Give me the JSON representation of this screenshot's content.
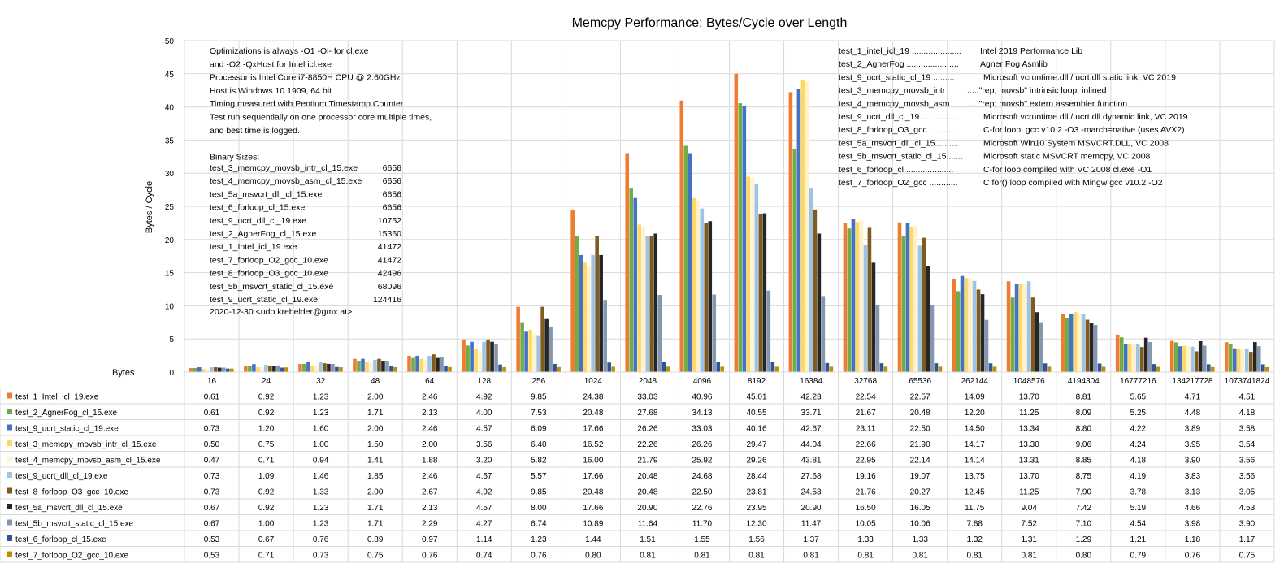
{
  "colors": {
    "test_1_Intel_icl_19.exe": "#ED7D31",
    "test_2_AgnerFog_cl_15.exe": "#70AD47",
    "test_9_ucrt_static_cl_19.exe": "#4472C4",
    "test_3_memcpy_movsb_intr_cl_15.exe": "#FFD966",
    "test_4_memcpy_movsb_asm_cl_15.exe": "#FFF2CC",
    "test_9_ucrt_dll_cl_19.exe": "#9DC3E6",
    "test_8_forloop_O3_gcc_10.exe": "#7F5B1E",
    "test_5a_msvcrt_dll_cl_15.exe": "#262626",
    "test_5b_msvcrt_static_cl_15.exe": "#8497B0",
    "test_6_forloop_cl_15.exe": "#2F5597",
    "test_7_forloop_O2_gcc_10.exe": "#BF8F00"
  },
  "chart_data": {
    "type": "bar",
    "title": "Memcpy Performance: Bytes/Cycle over Length",
    "ylabel": "Bytes / Cycle",
    "xlabel": "Bytes",
    "ylim": [
      0,
      50
    ],
    "yticks": [
      "0",
      "5",
      "10",
      "15",
      "20",
      "25",
      "30",
      "35",
      "40",
      "45",
      "50"
    ],
    "grid": true,
    "legend_placement": "data table below chart",
    "categories": [
      "16",
      "24",
      "32",
      "48",
      "64",
      "128",
      "256",
      "1024",
      "2048",
      "4096",
      "8192",
      "16384",
      "32768",
      "65536",
      "262144",
      "1048576",
      "4194304",
      "16777216",
      "134217728",
      "1073741824"
    ],
    "series": [
      {
        "name": "test_1_Intel_icl_19.exe",
        "values": [
          0.61,
          0.92,
          1.23,
          2.0,
          2.46,
          4.92,
          9.85,
          24.38,
          33.03,
          40.96,
          45.01,
          42.23,
          22.54,
          22.57,
          14.09,
          13.7,
          8.81,
          5.65,
          4.71,
          4.51
        ]
      },
      {
        "name": "test_2_AgnerFog_cl_15.exe",
        "values": [
          0.61,
          0.92,
          1.23,
          1.71,
          2.13,
          4.0,
          7.53,
          20.48,
          27.68,
          34.13,
          40.55,
          33.71,
          21.67,
          20.48,
          12.2,
          11.25,
          8.09,
          5.25,
          4.48,
          4.18
        ]
      },
      {
        "name": "test_9_ucrt_static_cl_19.exe",
        "values": [
          0.73,
          1.2,
          1.6,
          2.0,
          2.46,
          4.57,
          6.09,
          17.66,
          26.26,
          33.03,
          40.16,
          42.67,
          23.11,
          22.5,
          14.5,
          13.34,
          8.8,
          4.22,
          3.89,
          3.58
        ]
      },
      {
        "name": "test_3_memcpy_movsb_intr_cl_15.exe",
        "values": [
          0.5,
          0.75,
          1.0,
          1.5,
          2.0,
          3.56,
          6.4,
          16.52,
          22.26,
          26.26,
          29.47,
          44.04,
          22.66,
          21.9,
          14.17,
          13.3,
          9.06,
          4.24,
          3.95,
          3.54
        ]
      },
      {
        "name": "test_4_memcpy_movsb_asm_cl_15.exe",
        "values": [
          0.47,
          0.71,
          0.94,
          1.41,
          1.88,
          3.2,
          5.82,
          16.0,
          21.79,
          25.92,
          29.26,
          43.81,
          22.95,
          22.14,
          14.14,
          13.31,
          8.85,
          4.18,
          3.9,
          3.56
        ]
      },
      {
        "name": "test_9_ucrt_dll_cl_19.exe",
        "values": [
          0.73,
          1.09,
          1.46,
          1.85,
          2.46,
          4.57,
          5.57,
          17.66,
          20.48,
          24.68,
          28.44,
          27.68,
          19.16,
          19.07,
          13.75,
          13.7,
          8.75,
          4.19,
          3.83,
          3.56
        ]
      },
      {
        "name": "test_8_forloop_O3_gcc_10.exe",
        "values": [
          0.73,
          0.92,
          1.33,
          2.0,
          2.67,
          4.92,
          9.85,
          20.48,
          20.48,
          22.5,
          23.81,
          24.53,
          21.76,
          20.27,
          12.45,
          11.25,
          7.9,
          3.78,
          3.13,
          3.05
        ]
      },
      {
        "name": "test_5a_msvcrt_dll_cl_15.exe",
        "values": [
          0.67,
          0.92,
          1.23,
          1.71,
          2.13,
          4.57,
          8.0,
          17.66,
          20.9,
          22.76,
          23.95,
          20.9,
          16.5,
          16.05,
          11.75,
          9.04,
          7.42,
          5.19,
          4.66,
          4.53
        ]
      },
      {
        "name": "test_5b_msvcrt_static_cl_15.exe",
        "values": [
          0.67,
          1.0,
          1.23,
          1.71,
          2.29,
          4.27,
          6.74,
          10.89,
          11.64,
          11.7,
          12.3,
          11.47,
          10.05,
          10.06,
          7.88,
          7.52,
          7.1,
          4.54,
          3.98,
          3.9
        ]
      },
      {
        "name": "test_6_forloop_cl_15.exe",
        "values": [
          0.53,
          0.67,
          0.76,
          0.89,
          0.97,
          1.14,
          1.23,
          1.44,
          1.51,
          1.55,
          1.56,
          1.37,
          1.33,
          1.33,
          1.32,
          1.31,
          1.29,
          1.21,
          1.18,
          1.17
        ]
      },
      {
        "name": "test_7_forloop_O2_gcc_10.exe",
        "values": [
          0.53,
          0.71,
          0.73,
          0.75,
          0.76,
          0.74,
          0.76,
          0.8,
          0.81,
          0.81,
          0.81,
          0.81,
          0.81,
          0.81,
          0.81,
          0.81,
          0.8,
          0.79,
          0.76,
          0.75
        ]
      }
    ],
    "notes": [
      "Optimizations is always -O1 -Oi- for cl.exe",
      " and -O2 -QxHost for Intel icl.exe",
      "Processor is Intel Core i7-8850H CPU @ 2.60GHz",
      "Host is Windows 10 1909, 64 bit",
      "Timing measured with Pentium Timestamp Counter",
      "Test run sequentially on one processor core multiple times,",
      "and best time is logged.",
      "",
      "Binary Sizes:"
    ],
    "binary_sizes": [
      {
        "name": "test_3_memcpy_movsb_intr_cl_15.exe",
        "size": "6656"
      },
      {
        "name": "test_4_memcpy_movsb_asm_cl_15.exe",
        "size": "6656"
      },
      {
        "name": "test_5a_msvcrt_dll_cl_15.exe",
        "size": "6656"
      },
      {
        "name": "test_6_forloop_cl_15.exe",
        "size": "6656"
      },
      {
        "name": "test_9_ucrt_dll_cl_19.exe",
        "size": "10752"
      },
      {
        "name": "test_2_AgnerFog_cl_15.exe",
        "size": "15360"
      },
      {
        "name": "test_1_Intel_icl_19.exe",
        "size": "41472"
      },
      {
        "name": "test_7_forloop_O2_gcc_10.exe",
        "size": "41472"
      },
      {
        "name": "test_8_forloop_O3_gcc_10.exe",
        "size": "42496"
      },
      {
        "name": "test_5b_msvcrt_static_cl_15.exe",
        "size": "68096"
      },
      {
        "name": "test_9_ucrt_static_cl_19.exe",
        "size": "124416"
      }
    ],
    "date_note": "2020-12-30  <udo.krebelder@gmx.at>",
    "descriptions": [
      {
        "key": "test_1_intel_icl_19 .....................",
        "desc": "Intel  2019 Performance Lib"
      },
      {
        "key": "test_2_AgnerFog  ......................",
        "desc": "Agner Fog Asmlib"
      },
      {
        "key": "test_9_ucrt_static_cl_19 .........",
        "desc": "Microsoft vcruntime.dll / ucrt.dll static link, VC 2019"
      },
      {
        "key": "test_3_memcpy_movsb_intr",
        "desc": ".....\"rep;  movsb\" intrinsic loop, inlined"
      },
      {
        "key": "test_4_memcpy_movsb_asm",
        "desc": ".....\"rep;  movsb\" extern assembler function"
      },
      {
        "key": "test_9_ucrt_dll_cl_19.................",
        "desc": "Microsoft vcruntime.dll / ucrt.dll dynamic link, VC 2019"
      },
      {
        "key": "test_8_forloop_O3_gcc  ............",
        "desc": "C-for loop, gcc v10.2 -O3 -march=native (uses AVX2)"
      },
      {
        "key": "test_5a_msvcrt_dll_cl_15..........",
        "desc": "Microsoft Win10 System MSVCRT.DLL,  VC 2008"
      },
      {
        "key": "test_5b_msvcrt_static_cl_15.......",
        "desc": "Microsoft static MSVCRT memcpy,  VC 2008"
      },
      {
        "key": "test_6_forloop_cl ....................",
        "desc": "C-for loop compiled with VC 2008 cl.exe -O1"
      },
      {
        "key": "test_7_forloop_O2_gcc  ............",
        "desc": "C for() loop compiled with  Mingw gcc v10.2 -O2"
      }
    ]
  }
}
